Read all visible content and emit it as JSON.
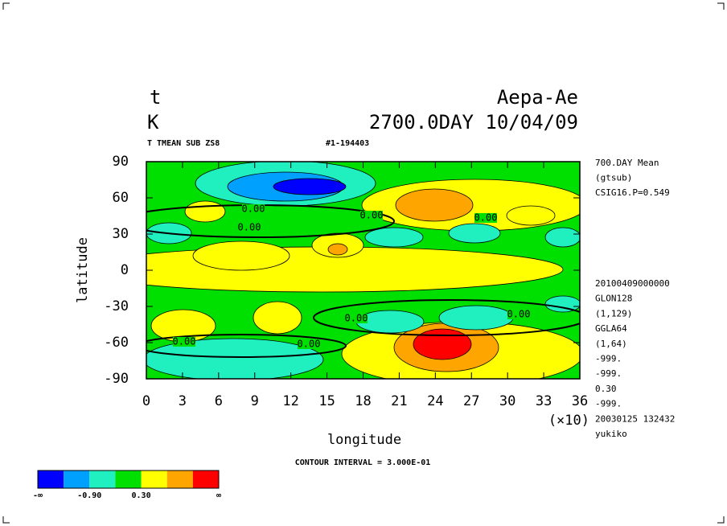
{
  "chart_data": {
    "type": "contour",
    "var_name": "t",
    "units": "K",
    "run_name": "Aepa-Ae",
    "time_label": "2700.0DAY 10/04/09",
    "subtitle": "T TMEAN SUB ZS8",
    "run_id": "#1-194403",
    "xlabel": "longitude",
    "ylabel": "latitude",
    "x_multiplier": "(×10)",
    "xlim": [
      0,
      36
    ],
    "xticks": [
      0,
      3,
      6,
      9,
      12,
      15,
      18,
      21,
      24,
      27,
      30,
      33,
      36
    ],
    "ylim": [
      -90,
      90
    ],
    "yticks": [
      -90,
      -60,
      -30,
      0,
      30,
      60,
      90
    ],
    "contour_interval": "CONTOUR INTERVAL = 3.000E-01",
    "contour_labels": [
      "0.00",
      "0.00",
      "0.00",
      "0.00",
      "0.00",
      "0.00",
      "0.00",
      "0.00"
    ],
    "colorbar_colors": [
      "#0000ff",
      "#00a0ff",
      "#20f0c0",
      "#00e000",
      "#ffff00",
      "#ffa500",
      "#ff0000"
    ],
    "colorbar_labels": [
      "-∞",
      "-0.90",
      "0.30",
      "∞"
    ],
    "info_top": [
      "700.DAY Mean",
      "(gtsub)",
      "CSIG16.P=0.549"
    ],
    "info_bottom": [
      "20100409000000",
      "GLON128",
      "(1,129)",
      "GGLA64",
      "(1,64)",
      "-999.",
      "-999.",
      "0.30",
      "-999.",
      "20030125 132432",
      "yukiko"
    ]
  }
}
